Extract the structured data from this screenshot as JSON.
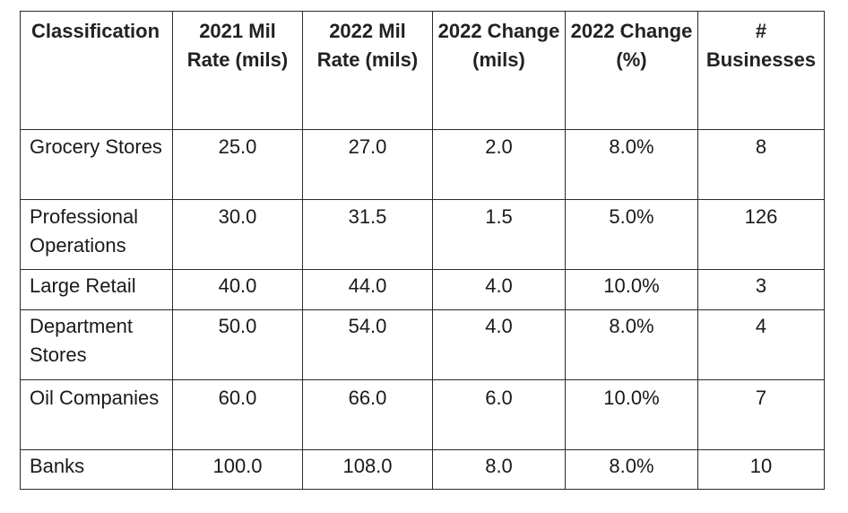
{
  "table": {
    "headers": [
      "Classification",
      "2021 Mil Rate (mils)",
      "2022 Mil Rate (mils)",
      "2022 Change (mils)",
      "2022 Change (%)",
      "# Businesses"
    ],
    "rows": [
      [
        "Grocery Stores",
        "25.0",
        "27.0",
        "2.0",
        "8.0%",
        "8"
      ],
      [
        "Professional Operations",
        "30.0",
        "31.5",
        "1.5",
        "5.0%",
        "126"
      ],
      [
        "Large Retail",
        "40.0",
        "44.0",
        "4.0",
        "10.0%",
        "3"
      ],
      [
        "Department Stores",
        "50.0",
        "54.0",
        "4.0",
        "8.0%",
        "4"
      ],
      [
        "Oil Companies",
        "60.0",
        "66.0",
        "6.0",
        "10.0%",
        "7"
      ],
      [
        "Banks",
        "100.0",
        "108.0",
        "8.0",
        "8.0%",
        "10"
      ]
    ]
  }
}
